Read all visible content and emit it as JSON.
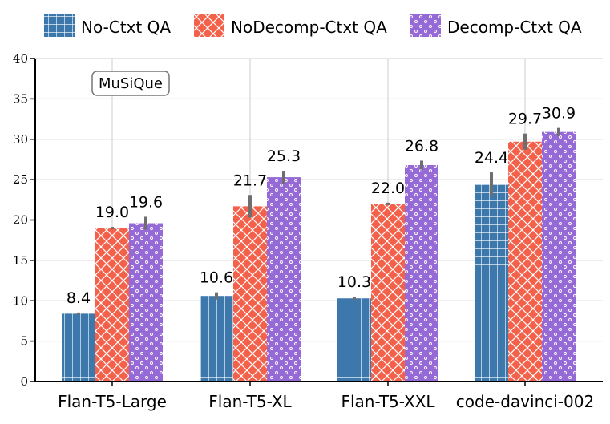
{
  "chart_data": {
    "type": "bar",
    "annotation": "MuSiQue",
    "categories": [
      "Flan-T5-Large",
      "Flan-T5-XL",
      "Flan-T5-XXL",
      "code-davinci-002"
    ],
    "series": [
      {
        "name": "No-Ctxt QA",
        "color": "#3d78ad",
        "pattern": "grid",
        "values": [
          8.4,
          10.6,
          10.3,
          24.4
        ],
        "labels": [
          "8.4",
          "10.6",
          "10.3",
          "24.4"
        ],
        "err": [
          0.15,
          0.45,
          0.2,
          1.5
        ]
      },
      {
        "name": "NoDecomp-Ctxt QA",
        "color": "#f4614a",
        "pattern": "crosshatch",
        "values": [
          19.0,
          21.7,
          22.0,
          29.7
        ],
        "labels": [
          "19.0",
          "21.7",
          "22.0",
          "29.7"
        ],
        "err": [
          0.15,
          1.4,
          0.15,
          1.0
        ]
      },
      {
        "name": "Decomp-Ctxt QA",
        "color": "#9569d6",
        "pattern": "dots",
        "values": [
          19.6,
          25.3,
          26.8,
          30.9
        ],
        "labels": [
          "19.6",
          "25.3",
          "26.8",
          "30.9"
        ],
        "err": [
          0.8,
          0.8,
          0.55,
          0.5
        ]
      }
    ],
    "ylim": [
      0,
      40
    ],
    "yticks": [
      0,
      5,
      10,
      15,
      20,
      25,
      30,
      35,
      40
    ],
    "xlabel": "",
    "ylabel": "",
    "grid": true,
    "legend_position": "top"
  }
}
